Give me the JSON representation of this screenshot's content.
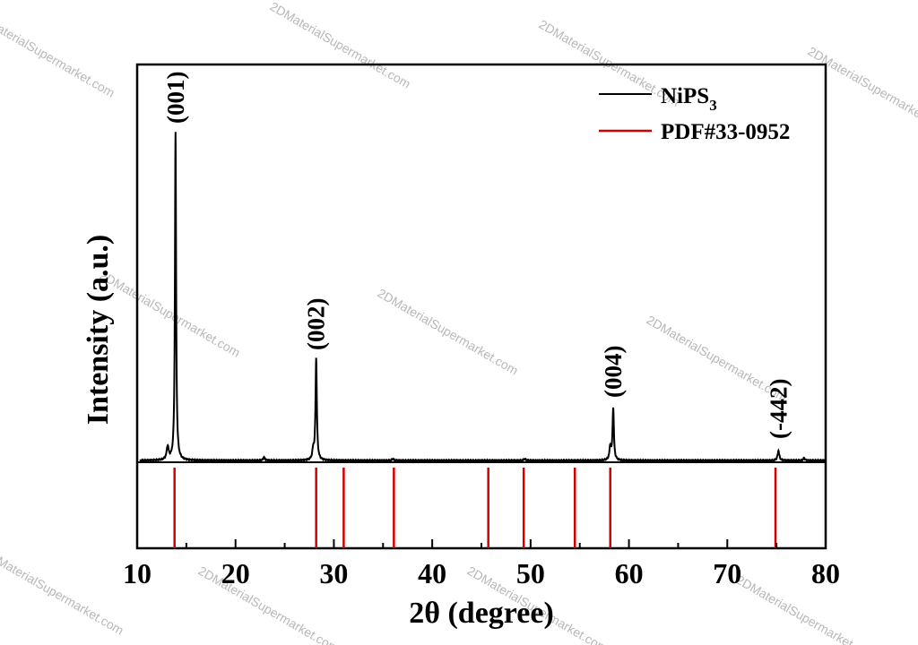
{
  "watermark": {
    "text": "2DMaterialSupermarket.com"
  },
  "chart_data": {
    "type": "line",
    "title": "",
    "xlabel": "2θ (degree)",
    "ylabel": "Intensity (a.u.)",
    "xlim": [
      10,
      80
    ],
    "xticks": [
      10,
      20,
      30,
      40,
      50,
      60,
      70,
      80
    ],
    "grid": false,
    "legend_position": "top-right",
    "series": [
      {
        "name": "NiPS",
        "name_subscript": "3",
        "color": "#000000",
        "kind": "line",
        "baseline": 0,
        "peaks": [
          {
            "x": 13.1,
            "height": 4,
            "width": 0.12
          },
          {
            "x": 13.9,
            "height": 100,
            "width": 0.07
          },
          {
            "x": 27.9,
            "height": 3,
            "width": 0.1
          },
          {
            "x": 28.2,
            "height": 31,
            "width": 0.08
          },
          {
            "x": 22.9,
            "height": 1,
            "width": 0.1
          },
          {
            "x": 36.0,
            "height": 0.5,
            "width": 0.1
          },
          {
            "x": 49.4,
            "height": 0.5,
            "width": 0.1
          },
          {
            "x": 58.1,
            "height": 4,
            "width": 0.1
          },
          {
            "x": 58.4,
            "height": 16,
            "width": 0.08
          },
          {
            "x": 75.2,
            "height": 3,
            "width": 0.1
          },
          {
            "x": 77.8,
            "height": 0.7,
            "width": 0.1
          }
        ]
      },
      {
        "name": "PDF#33-0952",
        "color": "#d40000",
        "kind": "stick",
        "positions": [
          13.8,
          28.2,
          31.0,
          36.1,
          45.7,
          49.3,
          54.5,
          58.1,
          74.9
        ]
      }
    ],
    "annotations": [
      {
        "label": "(001)",
        "x": 13.9
      },
      {
        "label": "(002)",
        "x": 28.2
      },
      {
        "label": "(004)",
        "x": 58.4
      },
      {
        "label": "(-442)",
        "x": 75.2
      }
    ]
  }
}
